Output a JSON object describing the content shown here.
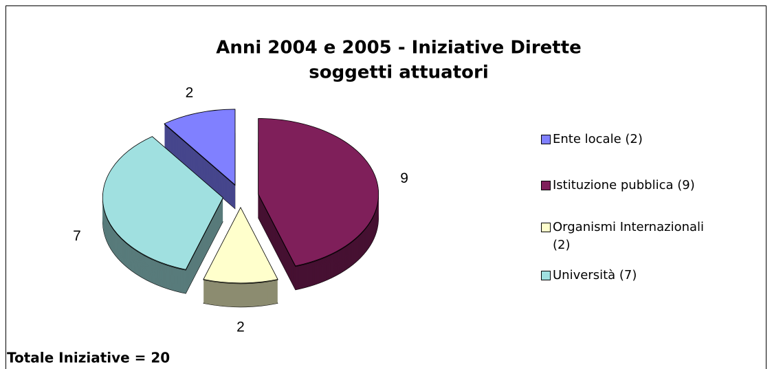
{
  "chart_data": {
    "type": "pie",
    "title": [
      "Anni 2004 e 2005 - Iniziative Dirette",
      "soggetti attuatori"
    ],
    "categories": [
      "Ente locale (2)",
      "Istituzione pubblica (9)",
      "Organismi Internazionali (2)",
      "Università (7)"
    ],
    "values": [
      2,
      9,
      2,
      7
    ],
    "colors": [
      "#8080ff",
      "#7f1f5a",
      "#ffffcc",
      "#a0e0e0"
    ],
    "legend": "right",
    "annotation": "Totale Iniziative = 20"
  }
}
